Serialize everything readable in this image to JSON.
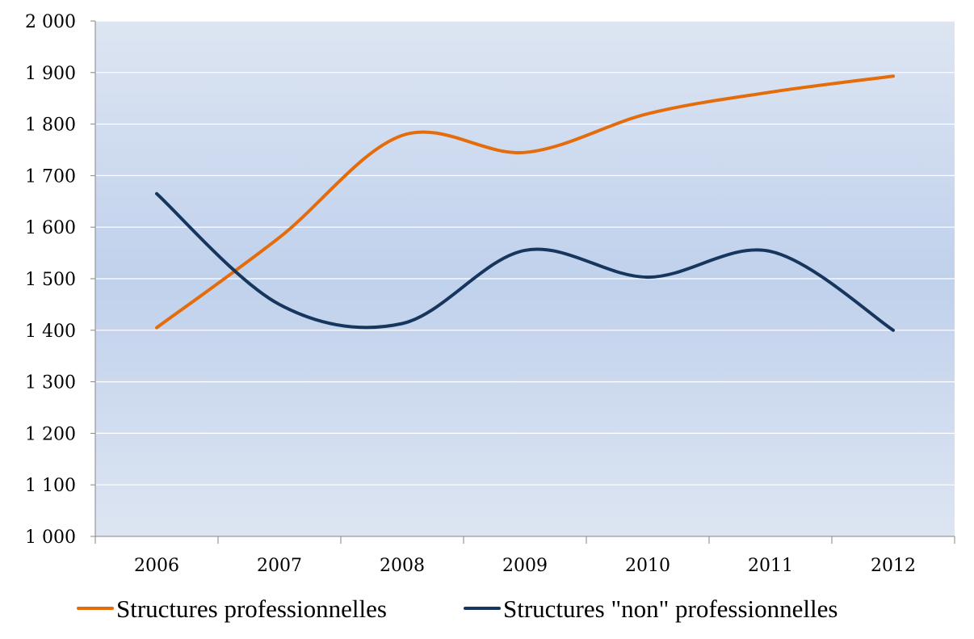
{
  "chart_data": {
    "type": "line",
    "title": "",
    "xlabel": "",
    "ylabel": "",
    "categories": [
      "2006",
      "2007",
      "2008",
      "2009",
      "2010",
      "2011",
      "2012"
    ],
    "y_tick_labels": [
      "1 000",
      "1 100",
      "1 200",
      "1 300",
      "1 400",
      "1 500",
      "1 600",
      "1 700",
      "1 800",
      "1 900",
      "2 000"
    ],
    "ylim": [
      1000,
      2000
    ],
    "y_step": 100,
    "grid": true,
    "smooth": true,
    "legend_position": "bottom",
    "series": [
      {
        "name": "Structures professionnelles",
        "color": "#e46c0a",
        "values": [
          1405,
          1580,
          1778,
          1745,
          1820,
          1862,
          1893
        ]
      },
      {
        "name": "Structures \"non\" professionnelles",
        "color": "#17365d",
        "values": [
          1665,
          1450,
          1413,
          1555,
          1503,
          1553,
          1400
        ]
      }
    ],
    "plot_background": [
      "#dde5f2",
      "#c0d1ec"
    ]
  }
}
